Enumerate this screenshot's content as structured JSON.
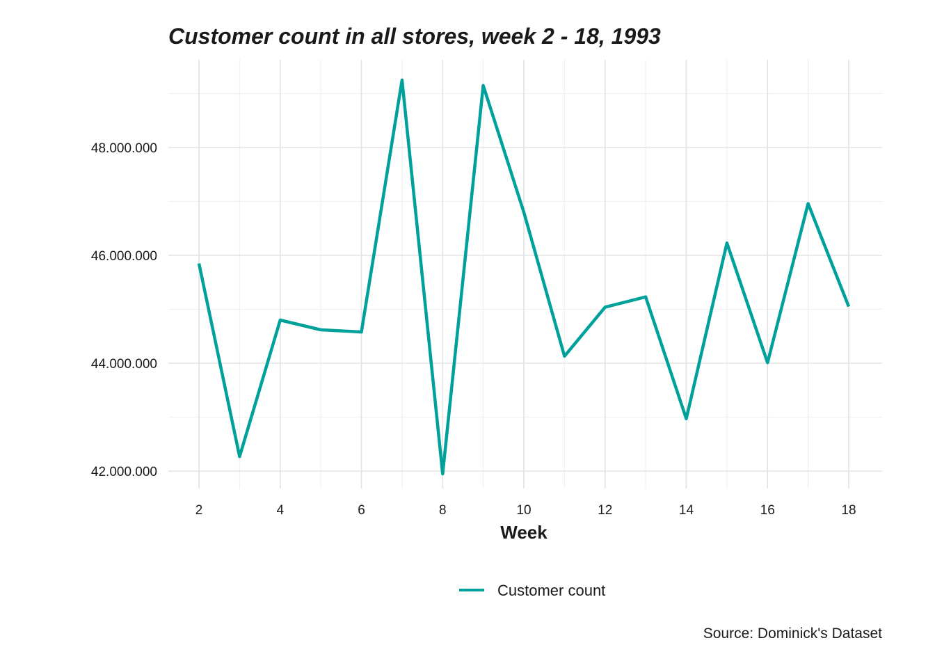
{
  "chart_data": {
    "type": "line",
    "title": "Customer count in all stores, week 2 - 18, 1993",
    "xlabel": "Week",
    "ylabel": "",
    "caption": "Source: Dominick's Dataset",
    "legend_position": "bottom",
    "grid": true,
    "xlim": [
      2,
      18
    ],
    "ylim": [
      41700000,
      49300000
    ],
    "x_ticks": [
      2,
      4,
      6,
      8,
      10,
      12,
      14,
      16,
      18
    ],
    "x_tick_labels": [
      "2",
      "4",
      "6",
      "8",
      "10",
      "12",
      "14",
      "16",
      "18"
    ],
    "y_ticks": [
      42000000,
      44000000,
      46000000,
      48000000
    ],
    "y_tick_labels": [
      "42.000.000",
      "44.000.000",
      "46.000.000",
      "48.000.000"
    ],
    "x": [
      2,
      3,
      4,
      5,
      6,
      7,
      8,
      9,
      10,
      11,
      12,
      13,
      14,
      15,
      16,
      17,
      18
    ],
    "series": [
      {
        "name": "Customer count",
        "color": "#00a19a",
        "values": [
          45850000,
          42270000,
          44800000,
          44620000,
          44580000,
          49250000,
          41950000,
          49150000,
          46800000,
          44130000,
          45040000,
          45230000,
          42970000,
          46230000,
          44010000,
          46960000,
          45050000
        ]
      }
    ]
  }
}
